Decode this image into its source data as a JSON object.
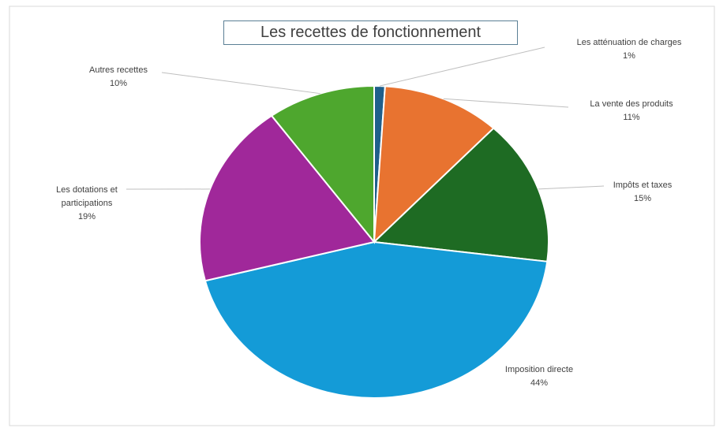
{
  "chart_data": {
    "type": "pie",
    "title": "Les recettes de fonctionnement",
    "categories": [
      "Les atténuation de charges",
      "La vente des produits",
      "Impôts et taxes",
      "Imposition directe",
      "Les dotations et participations",
      "Autres recettes"
    ],
    "values": [
      1,
      11,
      15,
      44,
      19,
      10
    ],
    "value_labels": [
      "1%",
      "11%",
      "15%",
      "44%",
      "19%",
      "10%"
    ],
    "colors": [
      "#1f5f8b",
      "#e87330",
      "#1e6b23",
      "#149bd7",
      "#a0289a",
      "#4ea72e"
    ]
  }
}
